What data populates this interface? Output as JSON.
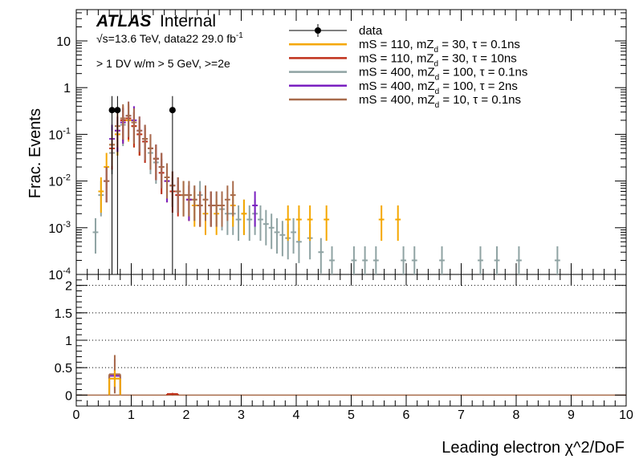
{
  "chart_data": {
    "type": "histogram-ratio",
    "atlas_label": "ATLAS",
    "atlas_status": "Internal",
    "energy_text": "√s=13.6 TeV, data22 29.0 fb",
    "lumi_superscript": "-1",
    "selection_text": "> 1 DV w/m > 5 GeV, >=2e",
    "ylabel": "Frac. Events",
    "xlabel": "Leading electron χ^2/DoF",
    "upper": {
      "yscale": "log",
      "ylim": [
        0.0001,
        40
      ],
      "ytick_labels": [
        {
          "value": 0.0001,
          "base": "10",
          "exp": "-4"
        },
        {
          "value": 0.001,
          "base": "10",
          "exp": "-3"
        },
        {
          "value": 0.01,
          "base": "10",
          "exp": "-2"
        },
        {
          "value": 0.1,
          "base": "10",
          "exp": "-1"
        },
        {
          "value": 1,
          "base": "1",
          "exp": ""
        },
        {
          "value": 10,
          "base": "10",
          "exp": ""
        }
      ]
    },
    "lower": {
      "ylim": [
        -0.2,
        2.2
      ],
      "yticks": [
        0,
        0.5,
        1,
        1.5,
        2
      ],
      "ytick_labels": [
        "0",
        "0.5",
        "1",
        "1.5",
        "2"
      ],
      "gridlines": [
        0.5,
        1,
        1.5,
        2
      ]
    },
    "x": {
      "xlim": [
        0,
        10
      ],
      "ticks": [
        0,
        1,
        2,
        3,
        4,
        5,
        6,
        7,
        8,
        9,
        10
      ],
      "tick_labels": [
        "0",
        "1",
        "2",
        "3",
        "4",
        "5",
        "6",
        "7",
        "8",
        "9",
        "10"
      ],
      "bin_width": 0.1
    },
    "legend": {
      "position": "top-right",
      "entries": [
        {
          "key": "data",
          "label": "data",
          "color": "#000000",
          "marker": "point"
        },
        {
          "key": "s1",
          "label": "mS = 110, mZ",
          "sub": "d",
          "tail": " = 30, τ = 0.1ns",
          "color": "#f5a700"
        },
        {
          "key": "s2",
          "label": "mS = 110, mZ",
          "sub": "d",
          "tail": " = 30, τ = 10ns",
          "color": "#c0301a"
        },
        {
          "key": "s3",
          "label": "mS = 400, mZ",
          "sub": "d",
          "tail": " = 100, τ = 0.1ns",
          "color": "#8fa3a3"
        },
        {
          "key": "s4",
          "label": "mS = 400, mZ",
          "sub": "d",
          "tail": " = 100, τ = 2ns",
          "color": "#7a1fc0"
        },
        {
          "key": "s5",
          "label": "mS = 400, mZ",
          "sub": "d",
          "tail": " = 10, τ = 0.1ns",
          "color": "#a86b4b"
        }
      ]
    },
    "data_points": {
      "x": [
        0.65,
        0.75,
        1.75
      ],
      "y": [
        0.33,
        0.33,
        0.33
      ],
      "yerr_low": [
        0.33,
        0.33,
        0.33
      ],
      "yerr_high": [
        0.33,
        0.33,
        0.33
      ]
    },
    "series": [
      {
        "name": "s1",
        "color": "#f5a700",
        "bins": [
          [
            0.4,
            0.006
          ],
          [
            0.5,
            0.02
          ],
          [
            0.6,
            0.06
          ],
          [
            0.7,
            0.1
          ],
          [
            0.8,
            0.18
          ],
          [
            0.9,
            0.2
          ],
          [
            1.0,
            0.15
          ],
          [
            1.1,
            0.1
          ],
          [
            1.2,
            0.08
          ],
          [
            1.3,
            0.05
          ],
          [
            1.4,
            0.03
          ],
          [
            1.5,
            0.02
          ],
          [
            1.6,
            0.01
          ],
          [
            1.7,
            0.008
          ],
          [
            1.8,
            0.006
          ],
          [
            1.9,
            0.005
          ],
          [
            2.0,
            0.004
          ],
          [
            2.1,
            0.003
          ],
          [
            2.2,
            0.003
          ],
          [
            2.3,
            0.002
          ],
          [
            2.4,
            0.003
          ],
          [
            2.5,
            0.002
          ],
          [
            2.8,
            0.003
          ],
          [
            3.0,
            0.002
          ],
          [
            3.8,
            0.0015
          ],
          [
            4.0,
            0.0015
          ],
          [
            4.2,
            0.0015
          ],
          [
            4.5,
            0.0015
          ],
          [
            5.5,
            0.0015
          ],
          [
            5.8,
            0.0015
          ]
        ]
      },
      {
        "name": "s2",
        "color": "#c0301a",
        "bins": [
          [
            0.5,
            0.01
          ],
          [
            0.6,
            0.05
          ],
          [
            0.7,
            0.12
          ],
          [
            0.8,
            0.2
          ],
          [
            0.9,
            0.22
          ],
          [
            1.0,
            0.15
          ],
          [
            1.1,
            0.1
          ],
          [
            1.2,
            0.07
          ],
          [
            1.3,
            0.05
          ],
          [
            1.4,
            0.03
          ],
          [
            1.5,
            0.015
          ],
          [
            1.6,
            0.01
          ],
          [
            1.7,
            0.006
          ],
          [
            1.8,
            0.005
          ],
          [
            2.0,
            0.004
          ],
          [
            2.2,
            0.003
          ],
          [
            2.4,
            0.003
          ]
        ]
      },
      {
        "name": "s3",
        "color": "#8fa3a3",
        "bins": [
          [
            0.3,
            0.0008
          ],
          [
            0.4,
            0.005
          ],
          [
            0.5,
            0.01
          ],
          [
            0.6,
            0.04
          ],
          [
            0.7,
            0.1
          ],
          [
            0.8,
            0.16
          ],
          [
            0.9,
            0.2
          ],
          [
            1.0,
            0.15
          ],
          [
            1.1,
            0.1
          ],
          [
            1.2,
            0.07
          ],
          [
            1.3,
            0.04
          ],
          [
            1.4,
            0.025
          ],
          [
            1.5,
            0.015
          ],
          [
            1.6,
            0.01
          ],
          [
            1.7,
            0.008
          ],
          [
            1.8,
            0.006
          ],
          [
            1.9,
            0.005
          ],
          [
            2.0,
            0.005
          ],
          [
            2.1,
            0.004
          ],
          [
            2.2,
            0.005
          ],
          [
            2.3,
            0.004
          ],
          [
            2.4,
            0.003
          ],
          [
            2.5,
            0.003
          ],
          [
            2.6,
            0.0025
          ],
          [
            2.7,
            0.002
          ],
          [
            2.8,
            0.002
          ],
          [
            2.9,
            0.0015
          ],
          [
            3.0,
            0.002
          ],
          [
            3.1,
            0.0015
          ],
          [
            3.2,
            0.002
          ],
          [
            3.3,
            0.0015
          ],
          [
            3.4,
            0.0012
          ],
          [
            3.5,
            0.001
          ],
          [
            3.6,
            0.0008
          ],
          [
            3.7,
            0.0007
          ],
          [
            3.8,
            0.0006
          ],
          [
            3.9,
            0.0008
          ],
          [
            4.0,
            0.0005
          ],
          [
            4.2,
            0.0006
          ],
          [
            4.4,
            0.0003
          ],
          [
            4.6,
            0.0002
          ],
          [
            5.0,
            0.0002
          ],
          [
            5.2,
            0.0002
          ],
          [
            5.4,
            0.0002
          ],
          [
            5.9,
            0.0002
          ],
          [
            6.1,
            0.0002
          ],
          [
            6.6,
            0.0002
          ],
          [
            7.3,
            0.0002
          ],
          [
            7.6,
            0.0002
          ],
          [
            8.0,
            0.0002
          ],
          [
            8.7,
            0.0002
          ]
        ]
      },
      {
        "name": "s4",
        "color": "#7a1fc0",
        "bins": [
          [
            0.5,
            0.01
          ],
          [
            0.6,
            0.08
          ],
          [
            0.7,
            0.12
          ],
          [
            0.8,
            0.18
          ],
          [
            0.9,
            0.25
          ],
          [
            1.0,
            0.2
          ],
          [
            1.1,
            0.12
          ],
          [
            1.2,
            0.08
          ],
          [
            1.3,
            0.05
          ],
          [
            1.4,
            0.03
          ],
          [
            1.5,
            0.02
          ],
          [
            1.6,
            0.01
          ],
          [
            1.7,
            0.008
          ],
          [
            1.8,
            0.006
          ],
          [
            2.0,
            0.004
          ],
          [
            2.2,
            0.003
          ],
          [
            2.4,
            0.003
          ],
          [
            3.2,
            0.003
          ]
        ]
      },
      {
        "name": "s5",
        "color": "#a86b4b",
        "bins": [
          [
            0.5,
            0.01
          ],
          [
            0.6,
            0.06
          ],
          [
            0.7,
            0.15
          ],
          [
            0.8,
            0.22
          ],
          [
            0.9,
            0.25
          ],
          [
            1.0,
            0.18
          ],
          [
            1.1,
            0.12
          ],
          [
            1.2,
            0.08
          ],
          [
            1.3,
            0.05
          ],
          [
            1.4,
            0.03
          ],
          [
            1.5,
            0.02
          ],
          [
            1.6,
            0.012
          ],
          [
            1.7,
            0.008
          ],
          [
            1.8,
            0.006
          ],
          [
            1.9,
            0.005
          ],
          [
            2.0,
            0.005
          ],
          [
            2.1,
            0.004
          ],
          [
            2.2,
            0.003
          ],
          [
            2.3,
            0.004
          ],
          [
            2.4,
            0.003
          ],
          [
            2.5,
            0.003
          ],
          [
            2.6,
            0.003
          ],
          [
            2.7,
            0.004
          ],
          [
            2.8,
            0.005
          ]
        ]
      }
    ],
    "ratio_points": [
      {
        "series": "s4",
        "x": 0.7,
        "y": 0.35,
        "err": 0.3
      },
      {
        "series": "s3",
        "x": 0.7,
        "y": 0.3,
        "err": 0.2
      },
      {
        "series": "s5",
        "x": 0.7,
        "y": 0.38,
        "err": 0.35
      },
      {
        "series": "s1",
        "x": 0.7,
        "y": 0.3,
        "err": 0.15
      },
      {
        "series": "s2",
        "x": 1.75,
        "y": 0.02,
        "err": 0.02
      }
    ]
  }
}
